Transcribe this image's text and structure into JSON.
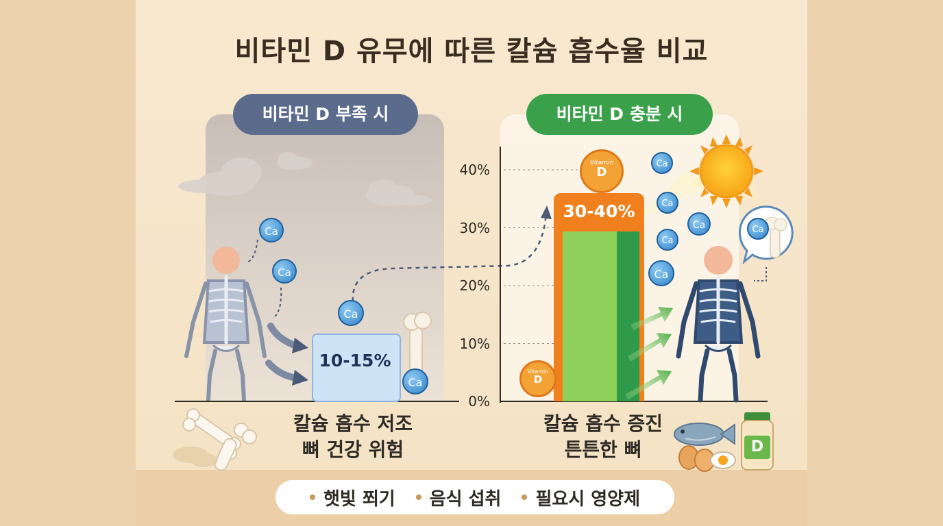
{
  "title": "비타민 D 유무에 따른 칼슘 흡수율 비교",
  "left": {
    "badge": "비타민 D 부족 시",
    "badge_color": "#5b6b8c",
    "caption_line1": "칼슘 흡수 저조",
    "caption_line2": "뼈 건강 위험"
  },
  "right": {
    "badge": "비타민 D 충분 시",
    "badge_color": "#3aa14a",
    "caption_line1": "칼슘 흡수 증진",
    "caption_line2": "튼튼한 뼈"
  },
  "chart_data": {
    "type": "bar",
    "categories": [
      "비타민 D 부족 시",
      "비타민 D 충분 시"
    ],
    "ranges": [
      [
        10,
        15
      ],
      [
        30,
        40
      ]
    ],
    "values": [
      15,
      40
    ],
    "labels": [
      "10-15%",
      "30-40%"
    ],
    "yticks": [
      "0%",
      "10%",
      "20%",
      "30%",
      "40%"
    ],
    "ylim": [
      0,
      40
    ],
    "colors": [
      "#b9d4f0",
      "#5db844"
    ]
  },
  "icons": {
    "calcium_label": "Ca",
    "vitamin_label_top": "Vitamin",
    "vitamin_label_letter": "D",
    "supplement_label": "D"
  },
  "footer": {
    "items": [
      "햇빛 쬐기",
      "음식 섭취",
      "필요시 영양제"
    ],
    "dot_color": "#c4995a"
  }
}
